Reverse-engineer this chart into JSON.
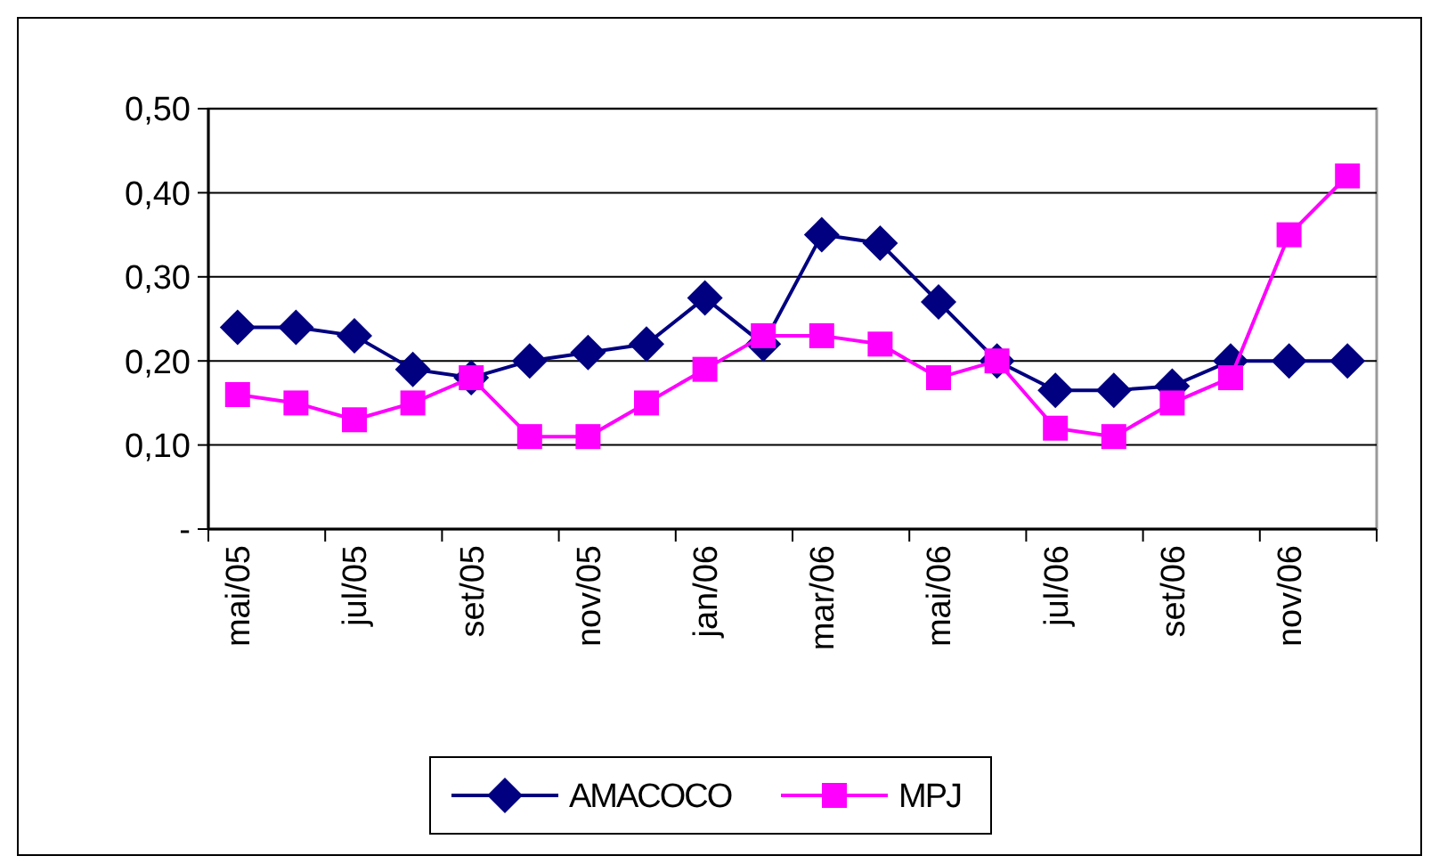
{
  "chart_data": {
    "type": "line",
    "categories": [
      "mai/05",
      null,
      "jul/05",
      null,
      "set/05",
      null,
      "nov/05",
      null,
      "jan/06",
      null,
      "mar/06",
      null,
      "mai/06",
      null,
      "jul/06",
      null,
      "set/06",
      null,
      "nov/06",
      null
    ],
    "series": [
      {
        "name": "AMACOCO",
        "color": "#000080",
        "marker": "diamond",
        "values": [
          0.24,
          0.24,
          0.23,
          0.19,
          0.18,
          0.2,
          0.21,
          0.22,
          0.275,
          0.22,
          0.35,
          0.34,
          0.27,
          0.2,
          0.165,
          0.165,
          0.17,
          0.2,
          0.2,
          0.2
        ]
      },
      {
        "name": "MPJ",
        "color": "#ff00ff",
        "marker": "square",
        "values": [
          0.16,
          0.15,
          0.13,
          0.15,
          0.18,
          0.11,
          0.11,
          0.15,
          0.19,
          0.23,
          0.23,
          0.22,
          0.18,
          0.2,
          0.12,
          0.11,
          0.15,
          0.18,
          0.35,
          0.42
        ]
      }
    ],
    "ylim": [
      0,
      0.5
    ],
    "yticks": [
      {
        "value": 0,
        "label": "-"
      },
      {
        "value": 0.1,
        "label": "0,10"
      },
      {
        "value": 0.2,
        "label": "0,20"
      },
      {
        "value": 0.3,
        "label": "0,30"
      },
      {
        "value": 0.4,
        "label": "0,40"
      },
      {
        "value": 0.5,
        "label": "0,50"
      }
    ],
    "grid": "y",
    "legend": "bottom",
    "line_style": "solid"
  }
}
